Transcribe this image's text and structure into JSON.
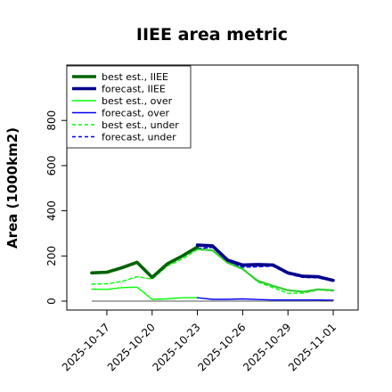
{
  "chart_data": {
    "type": "line",
    "title": "IIEE area metric",
    "xlabel": "",
    "ylabel": "Area (1000km2)",
    "x": [
      "2025-10-16",
      "2025-10-17",
      "2025-10-18",
      "2025-10-19",
      "2025-10-20",
      "2025-10-21",
      "2025-10-22",
      "2025-10-23",
      "2025-10-24",
      "2025-10-25",
      "2025-10-26",
      "2025-10-27",
      "2025-10-28",
      "2025-10-29",
      "2025-10-30",
      "2025-10-31",
      "2025-11-01"
    ],
    "xticks": [
      "2025-10-17",
      "2025-10-20",
      "2025-10-23",
      "2025-10-26",
      "2025-10-29",
      "2025-11-01"
    ],
    "highlight_tick": "2025-10-23",
    "yticks": [
      0,
      200,
      400,
      600,
      800
    ],
    "ylim": [
      -20,
      1040
    ],
    "grid": false,
    "legend_position": "top-left",
    "series": [
      {
        "name": "best est., IIEE",
        "color": "#006400",
        "style": "solid",
        "width": "thick",
        "values": [
          125,
          128,
          148,
          172,
          105,
          165,
          200,
          240,
          null,
          null,
          null,
          null,
          null,
          null,
          null,
          null,
          null
        ]
      },
      {
        "name": "forecast, IIEE",
        "color": "#00008b",
        "style": "solid",
        "width": "thick",
        "values": [
          null,
          null,
          null,
          null,
          null,
          null,
          null,
          248,
          245,
          182,
          160,
          162,
          160,
          125,
          110,
          108,
          92
        ]
      },
      {
        "name": "best est., over",
        "color": "#00ff00",
        "style": "solid",
        "width": "thin",
        "values": [
          53,
          52,
          60,
          62,
          8,
          10,
          15,
          15,
          null,
          null,
          null,
          null,
          null,
          null,
          null,
          null,
          null
        ]
      },
      {
        "name": "forecast, over",
        "color": "#0000ff",
        "style": "solid",
        "width": "thin",
        "values": [
          null,
          null,
          null,
          null,
          null,
          null,
          null,
          15,
          8,
          8,
          10,
          7,
          5,
          5,
          5,
          5,
          4
        ]
      },
      {
        "name": "best est., under",
        "color": "#00ff00",
        "style": "dashed",
        "width": "thin",
        "values": [
          75,
          77,
          87,
          108,
          98,
          155,
          187,
          228,
          225,
          175,
          145,
          85,
          60,
          35,
          35,
          50,
          45
        ]
      },
      {
        "name": "forecast, under",
        "color": "#0000ff",
        "style": "dashed",
        "width": "thin",
        "values": [
          null,
          null,
          null,
          null,
          null,
          null,
          null,
          233,
          238,
          175,
          150,
          152,
          155,
          120,
          105,
          103,
          88
        ]
      },
      {
        "name": "",
        "color": "#32cd32",
        "style": "solid",
        "width": "medium",
        "values": [
          null,
          null,
          null,
          null,
          null,
          null,
          null,
          230,
          225,
          170,
          142,
          90,
          68,
          48,
          42,
          52,
          48
        ]
      }
    ]
  }
}
